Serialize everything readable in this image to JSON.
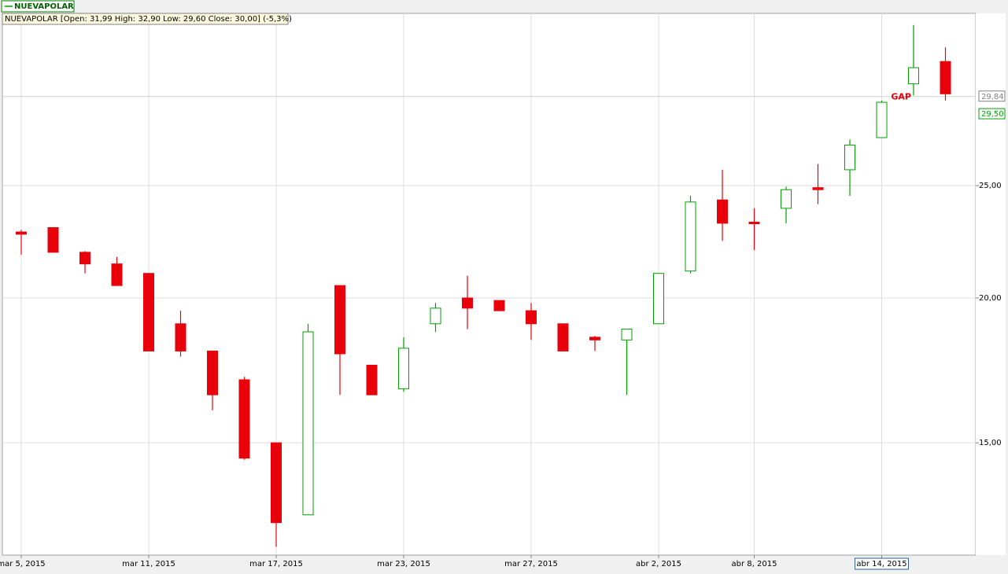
{
  "chart_data": {
    "type": "candlestick",
    "legend": "NUEVAPOLAR",
    "info": "NUEVAPOLAR [Open: 31,99  High: 32,90  Low: 29,60  Close: 30,00] (-5,3%)",
    "categories": [
      "mar 5, 2015",
      null,
      null,
      null,
      "mar 11, 2015",
      null,
      null,
      null,
      "mar 17, 2015",
      null,
      null,
      null,
      "mar 23, 2015",
      null,
      null,
      null,
      "mar 27, 2015",
      null,
      null,
      null,
      "abr 2, 2015",
      null,
      null,
      "abr 8, 2015",
      null,
      null,
      null,
      "abr 14, 2015",
      null,
      null
    ],
    "open": [
      22.8,
      23.0,
      21.9,
      21.4,
      21.0,
      19.0,
      18.0,
      17.0,
      15.0,
      13.0,
      20.5,
      17.5,
      16.7,
      19.0,
      20.0,
      19.9,
      19.5,
      19.0,
      18.5,
      18.4,
      19.0,
      21.1,
      24.3,
      23.25,
      23.9,
      24.9,
      25.8,
      27.5,
      30.6,
      31.99
    ],
    "high": [
      22.9,
      23.0,
      21.95,
      21.7,
      21.0,
      19.5,
      18.0,
      17.1,
      15.0,
      19.0,
      20.5,
      17.5,
      18.5,
      19.8,
      20.9,
      19.9,
      19.8,
      19.0,
      18.55,
      18.8,
      21.0,
      24.5,
      25.8,
      23.9,
      24.95,
      26.1,
      27.4,
      29.6,
      34.4,
      32.9
    ],
    "low": [
      21.8,
      21.9,
      21.0,
      20.5,
      18.0,
      17.8,
      16.0,
      14.5,
      12.2,
      13.0,
      16.5,
      16.5,
      16.6,
      18.7,
      18.8,
      19.5,
      18.4,
      18.0,
      18.0,
      16.5,
      19.0,
      21.0,
      22.4,
      22.0,
      23.2,
      24.1,
      24.5,
      27.5,
      29.9,
      29.6
    ],
    "close": [
      22.7,
      21.9,
      21.4,
      20.5,
      18.0,
      18.0,
      16.5,
      14.55,
      12.8,
      18.7,
      17.9,
      16.5,
      18.1,
      19.6,
      19.6,
      19.5,
      19.0,
      18.0,
      18.4,
      18.8,
      21.0,
      24.2,
      23.2,
      23.2,
      24.8,
      24.8,
      27.1,
      29.5,
      31.6,
      30.0
    ],
    "up_color": "#00a000",
    "down_color": "#e8000b",
    "log_scale": true,
    "ylim": [
      12,
      35.2
    ],
    "yticks": [
      {
        "value": 15,
        "label": "15,00"
      },
      {
        "value": 20,
        "label": "20,00"
      },
      {
        "value": 25,
        "label": "25,00"
      }
    ],
    "price_markers": [
      {
        "value": 29.84,
        "label": "29,84",
        "color": "#808080"
      },
      {
        "value": 29.5,
        "label": "29,50",
        "color": "#00a000"
      }
    ],
    "annotations": [
      {
        "text": "GAP",
        "category_index": 28,
        "value": 29.8,
        "color": "#e8000b"
      }
    ],
    "selected_index": 27,
    "grid": true
  }
}
